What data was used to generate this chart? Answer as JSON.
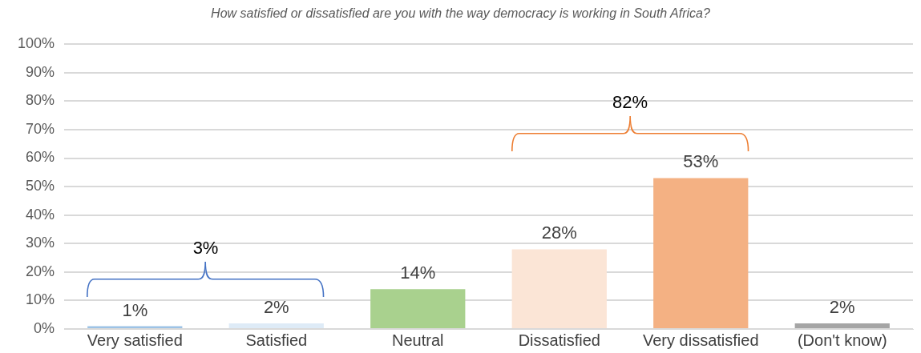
{
  "chart_data": {
    "type": "bar",
    "title": "How satisfied or dissatisfied are you with the way democracy is working in South Africa?",
    "categories": [
      "Very satisfied",
      "Satisfied",
      "Neutral",
      "Dissatisfied",
      "Very dissatisfied",
      "(Don't know)"
    ],
    "values": [
      1,
      2,
      14,
      28,
      53,
      2
    ],
    "colors": [
      "#9dc3e6",
      "#deebf7",
      "#a9d18e",
      "#fbe5d6",
      "#f4b183",
      "#a5a5a5"
    ],
    "ylim": [
      0,
      100
    ],
    "yticks": [
      {
        "value": 0,
        "label": "0%"
      },
      {
        "value": 10,
        "label": "10%"
      },
      {
        "value": 20,
        "label": "20%"
      },
      {
        "value": 30,
        "label": "30%"
      },
      {
        "value": 40,
        "label": "40%"
      },
      {
        "value": 50,
        "label": "50%"
      },
      {
        "value": 60,
        "label": "60%"
      },
      {
        "value": 70,
        "label": "70%"
      },
      {
        "value": 80,
        "label": "80%"
      },
      {
        "value": 90,
        "label": "90%"
      },
      {
        "value": 100,
        "label": "100%"
      }
    ],
    "value_labels": [
      "1%",
      "2%",
      "14%",
      "28%",
      "53%",
      "2%"
    ],
    "grid": "y",
    "legend": false,
    "annotations": [
      "3%",
      "82%"
    ]
  }
}
